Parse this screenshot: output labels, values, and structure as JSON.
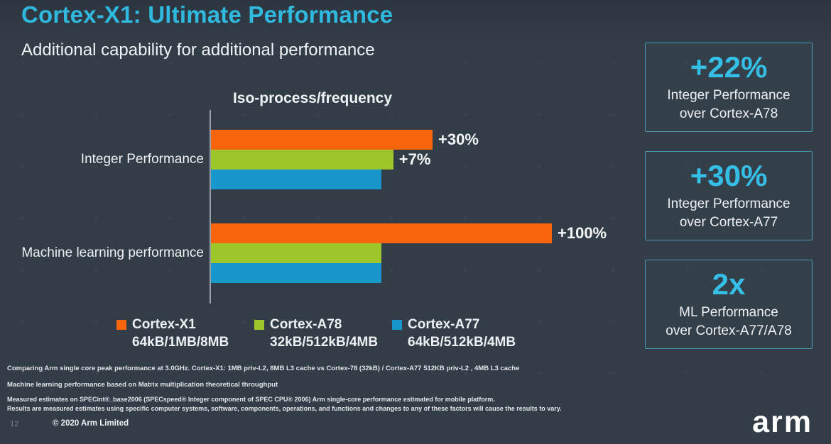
{
  "slide": {
    "title": "Cortex-X1: Ultimate Performance",
    "subtitle": "Additional capability for additional performance"
  },
  "chart_data": {
    "type": "bar",
    "orientation": "horizontal",
    "title": "Iso-process/frequency",
    "categories": [
      "Integer Performance",
      "Machine learning performance"
    ],
    "series": [
      {
        "name": "Cortex-X1",
        "cache": "64kB/1MB/8MB",
        "color": "#f8650c",
        "values": [
          130,
          200
        ],
        "labels": [
          "+30%",
          "+100%"
        ]
      },
      {
        "name": "Cortex-A78",
        "cache": "32kB/512kB/4MB",
        "color": "#9dc62b",
        "values": [
          107,
          100
        ],
        "labels": [
          "+7%",
          ""
        ]
      },
      {
        "name": "Cortex-A77",
        "cache": "64kB/512kB/4MB",
        "color": "#1797cc",
        "values": [
          100,
          100
        ],
        "labels": [
          "",
          ""
        ]
      }
    ],
    "xlim": [
      0,
      200
    ],
    "grid": false,
    "legend_position": "bottom"
  },
  "highlights": [
    {
      "value": "+22%",
      "line1": "Integer Performance",
      "line2": "over Cortex-A78"
    },
    {
      "value": "+30%",
      "line1": "Integer Performance",
      "line2": "over Cortex-A77"
    },
    {
      "value": "2x",
      "line1": "ML Performance",
      "line2": "over Cortex-A77/A78"
    }
  ],
  "footnotes": [
    "Comparing  Arm single core peak performance at 3.0GHz. Cortex-X1: 1MB priv-L2, 8MB L3 cache vs Cortex-78 (32kB) / Cortex-A77 512KB priv-L2 , 4MB L3 cache",
    "Machine learning performance based on Matrix multiplication theoretical throughput",
    "Measured estimates on SPECint®_base2006 (SPECspeed® Integer component of SPEC CPU® 2006) Arm single-core performance estimated for mobile platform.",
    "Results are measured estimates using specific computer systems, software, components, operations, and functions and changes to any of these factors will cause the results to vary."
  ],
  "footer": {
    "page_number": "12",
    "copyright": "© 2020 Arm Limited",
    "logo": "arm"
  },
  "colors": {
    "background": "#333d47",
    "accent_cyan": "#2fb9df",
    "bar_orange": "#f8650c",
    "bar_green": "#9dc62b",
    "bar_blue": "#1797cc",
    "box_border": "#4c96b1"
  }
}
